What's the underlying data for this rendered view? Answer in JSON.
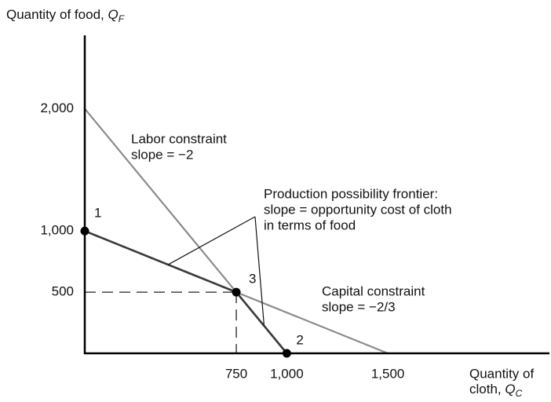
{
  "chart_data": {
    "type": "line",
    "ylabel": {
      "text": "Quantity of food,",
      "symbol": "Q",
      "sub": "F"
    },
    "xlabel": {
      "lines": [
        "Quantity of",
        "cloth,"
      ],
      "symbol": "Q",
      "sub": "C"
    },
    "xlim": [
      0,
      2300
    ],
    "ylim": [
      0,
      2600
    ],
    "xticks": [
      750,
      {
        "value": 1000,
        "label": "1,000"
      },
      {
        "value": 1500,
        "label": "1,500"
      }
    ],
    "yticks": [
      500,
      {
        "value": 1000,
        "label": "1,000"
      },
      {
        "value": 2000,
        "label": "2,000"
      }
    ],
    "series": [
      {
        "name": "Labor constraint",
        "color": "#8a8a8a",
        "x": [
          0,
          1000
        ],
        "values": [
          2000,
          0
        ]
      },
      {
        "name": "Capital constraint",
        "color": "#8a8a8a",
        "x": [
          0,
          1500
        ],
        "values": [
          1000,
          0
        ]
      },
      {
        "name": "Production possibility frontier",
        "color": "#3a3a3a",
        "x": [
          0,
          750,
          1000
        ],
        "values": [
          1000,
          500,
          0
        ]
      }
    ],
    "point_labels": [
      "1",
      "3",
      "2"
    ],
    "annotations": {
      "labor": [
        "Labor constraint",
        "slope = −2"
      ],
      "capital": [
        "Capital constraint",
        "slope = −2/3"
      ],
      "ppf": [
        "Production possibility frontier:",
        "slope = opportunity cost of cloth",
        "in terms of food"
      ]
    }
  }
}
